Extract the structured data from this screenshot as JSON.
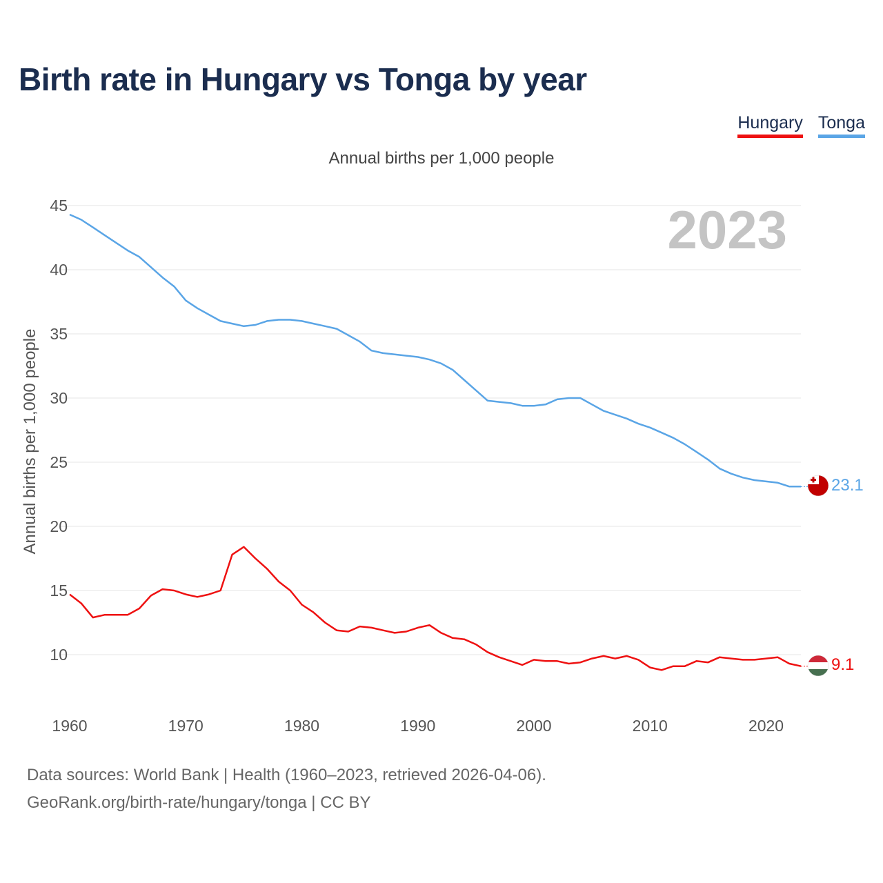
{
  "title": "Birth rate in Hungary vs Tonga by year",
  "subtitle": "Annual births per 1,000 people",
  "legend": [
    {
      "label": "Hungary",
      "color": "#ee1111"
    },
    {
      "label": "Tonga",
      "color": "#5aa5e6"
    }
  ],
  "year_label": "2023",
  "footer": {
    "line1": "Data sources: World Bank | Health (1960–2023, retrieved 2026-04-06).",
    "line2": "GeoRank.org/birth-rate/hungary/tonga | CC BY"
  },
  "end_labels": {
    "tonga": "23.1",
    "hungary": "9.1"
  },
  "chart_data": {
    "type": "line",
    "title": "Birth rate in Hungary vs Tonga by year",
    "xlabel": "",
    "ylabel": "Annual births per 1,000 people",
    "xlim": [
      1960,
      2023
    ],
    "ylim": [
      6.5,
      45
    ],
    "x_ticks": [
      "1960",
      "1970",
      "1980",
      "1990",
      "2000",
      "2010",
      "2020"
    ],
    "y_ticks": [
      "10",
      "15",
      "20",
      "25",
      "30",
      "35",
      "40",
      "45"
    ],
    "grid": true,
    "x": [
      1960,
      1961,
      1962,
      1963,
      1964,
      1965,
      1966,
      1967,
      1968,
      1969,
      1970,
      1971,
      1972,
      1973,
      1974,
      1975,
      1976,
      1977,
      1978,
      1979,
      1980,
      1981,
      1982,
      1983,
      1984,
      1985,
      1986,
      1987,
      1988,
      1989,
      1990,
      1991,
      1992,
      1993,
      1994,
      1995,
      1996,
      1997,
      1998,
      1999,
      2000,
      2001,
      2002,
      2003,
      2004,
      2005,
      2006,
      2007,
      2008,
      2009,
      2010,
      2011,
      2012,
      2013,
      2014,
      2015,
      2016,
      2017,
      2018,
      2019,
      2020,
      2021,
      2022,
      2023
    ],
    "series": [
      {
        "name": "Hungary",
        "color": "#ee1111",
        "values": [
          14.7,
          14.0,
          12.9,
          13.1,
          13.1,
          13.1,
          13.6,
          14.6,
          15.1,
          15.0,
          14.7,
          14.5,
          14.7,
          15.0,
          17.8,
          18.4,
          17.5,
          16.7,
          15.7,
          15.0,
          13.9,
          13.3,
          12.5,
          11.9,
          11.8,
          12.2,
          12.1,
          11.9,
          11.7,
          11.8,
          12.1,
          12.3,
          11.7,
          11.3,
          11.2,
          10.8,
          10.2,
          9.8,
          9.5,
          9.2,
          9.6,
          9.5,
          9.5,
          9.3,
          9.4,
          9.7,
          9.9,
          9.7,
          9.9,
          9.6,
          9.0,
          8.8,
          9.1,
          9.1,
          9.5,
          9.4,
          9.8,
          9.7,
          9.6,
          9.6,
          9.7,
          9.8,
          9.3,
          9.1
        ]
      },
      {
        "name": "Tonga",
        "color": "#5aa5e6",
        "values": [
          44.3,
          43.9,
          43.3,
          42.7,
          42.1,
          41.5,
          41.0,
          40.2,
          39.4,
          38.7,
          37.6,
          37.0,
          36.5,
          36.0,
          35.8,
          35.6,
          35.7,
          36.0,
          36.1,
          36.1,
          36.0,
          35.8,
          35.6,
          35.4,
          34.9,
          34.4,
          33.7,
          33.5,
          33.4,
          33.3,
          33.2,
          33.0,
          32.7,
          32.2,
          31.4,
          30.6,
          29.8,
          29.7,
          29.6,
          29.4,
          29.4,
          29.5,
          29.9,
          30.0,
          30.0,
          29.5,
          29.0,
          28.7,
          28.4,
          28.0,
          27.7,
          27.3,
          26.9,
          26.4,
          25.8,
          25.2,
          24.5,
          24.1,
          23.8,
          23.6,
          23.5,
          23.4,
          23.1,
          23.1
        ]
      }
    ]
  }
}
